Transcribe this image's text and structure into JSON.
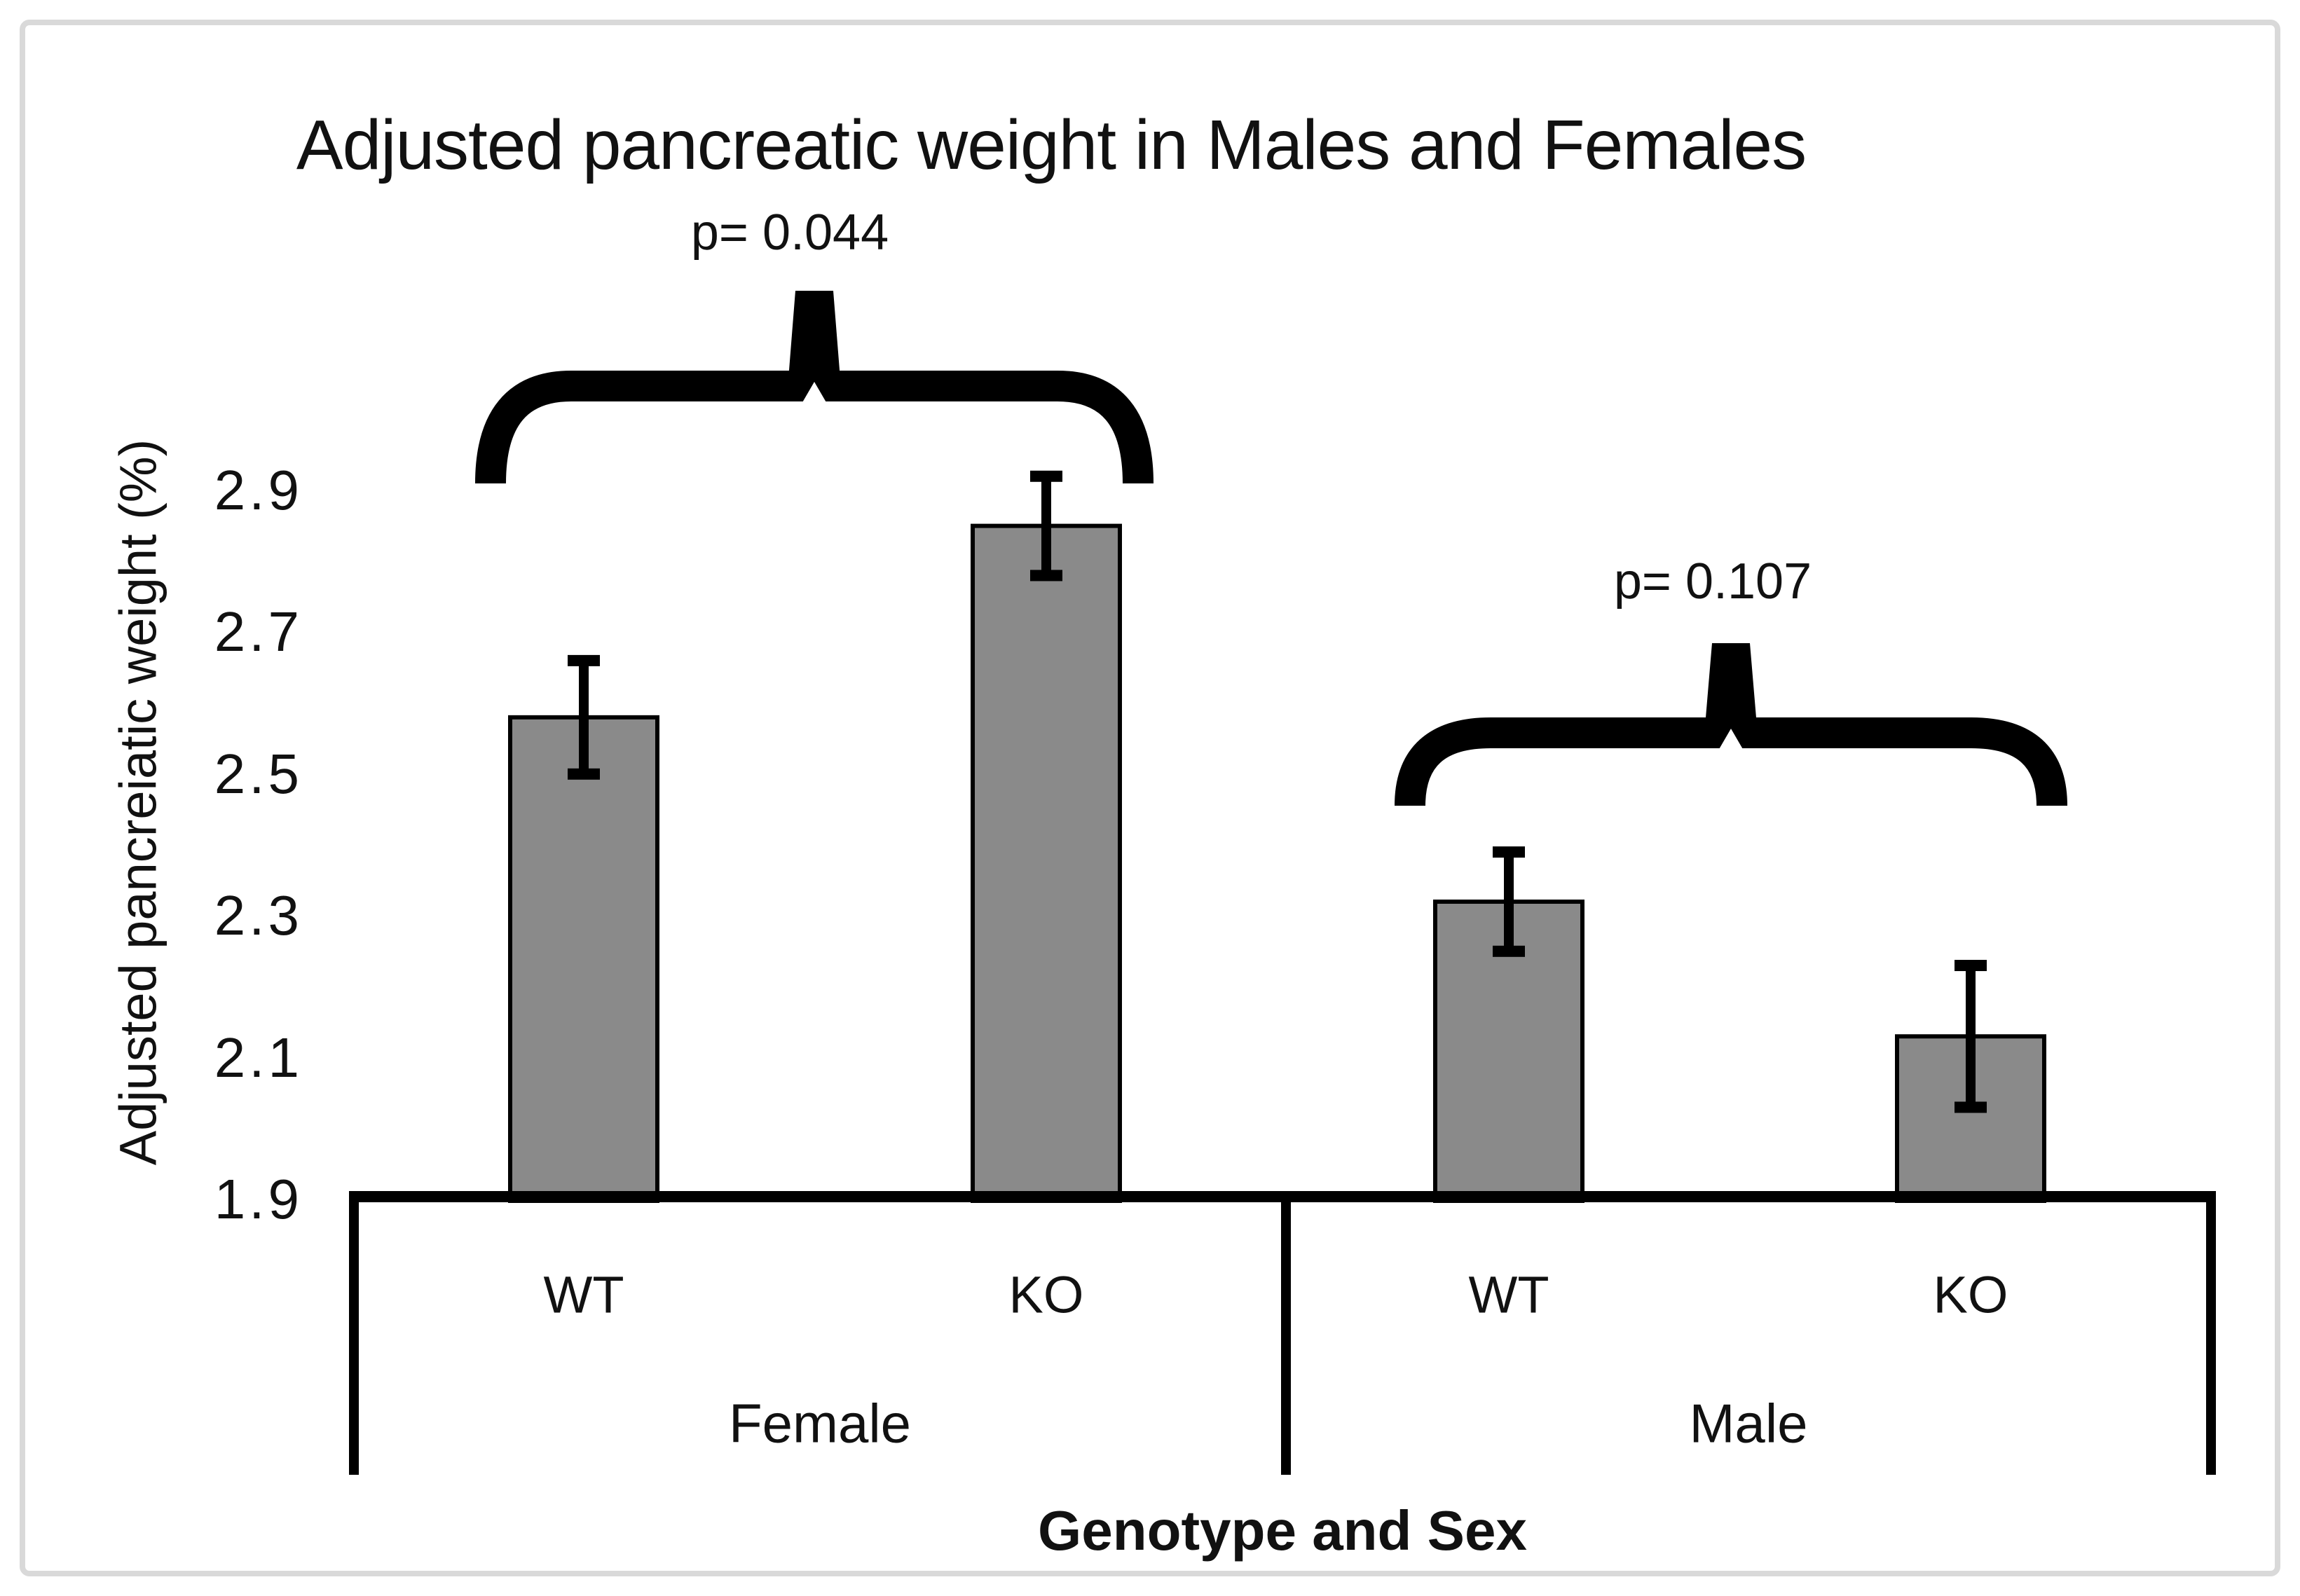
{
  "chart_data": {
    "type": "bar",
    "title": "Adjusted pancreatic weight in Males and Females",
    "ylabel": "Adjusted pancreiatic weight (%)",
    "xlabel": "Genotype and Sex",
    "yticks": [
      2.9,
      2.7,
      2.5,
      2.3,
      2.1,
      1.9
    ],
    "ylim": [
      1.9,
      3.05
    ],
    "grid": false,
    "legend_position": null,
    "bar_color": "#8a8a8a",
    "bar_edge_color": "#000000",
    "error_bar_color": "#000000",
    "frame_border_color": "#d9d9d9",
    "groups": [
      {
        "label": "Female",
        "categories": [
          "WT",
          "KO"
        ],
        "values": [
          2.58,
          2.85
        ],
        "errors": [
          0.08,
          0.07
        ],
        "p_label": "p= 0.044"
      },
      {
        "label": "Male",
        "categories": [
          "WT",
          "KO"
        ],
        "values": [
          2.32,
          2.13
        ],
        "errors": [
          0.07,
          0.1
        ],
        "p_label": "p= 0.107"
      }
    ]
  }
}
